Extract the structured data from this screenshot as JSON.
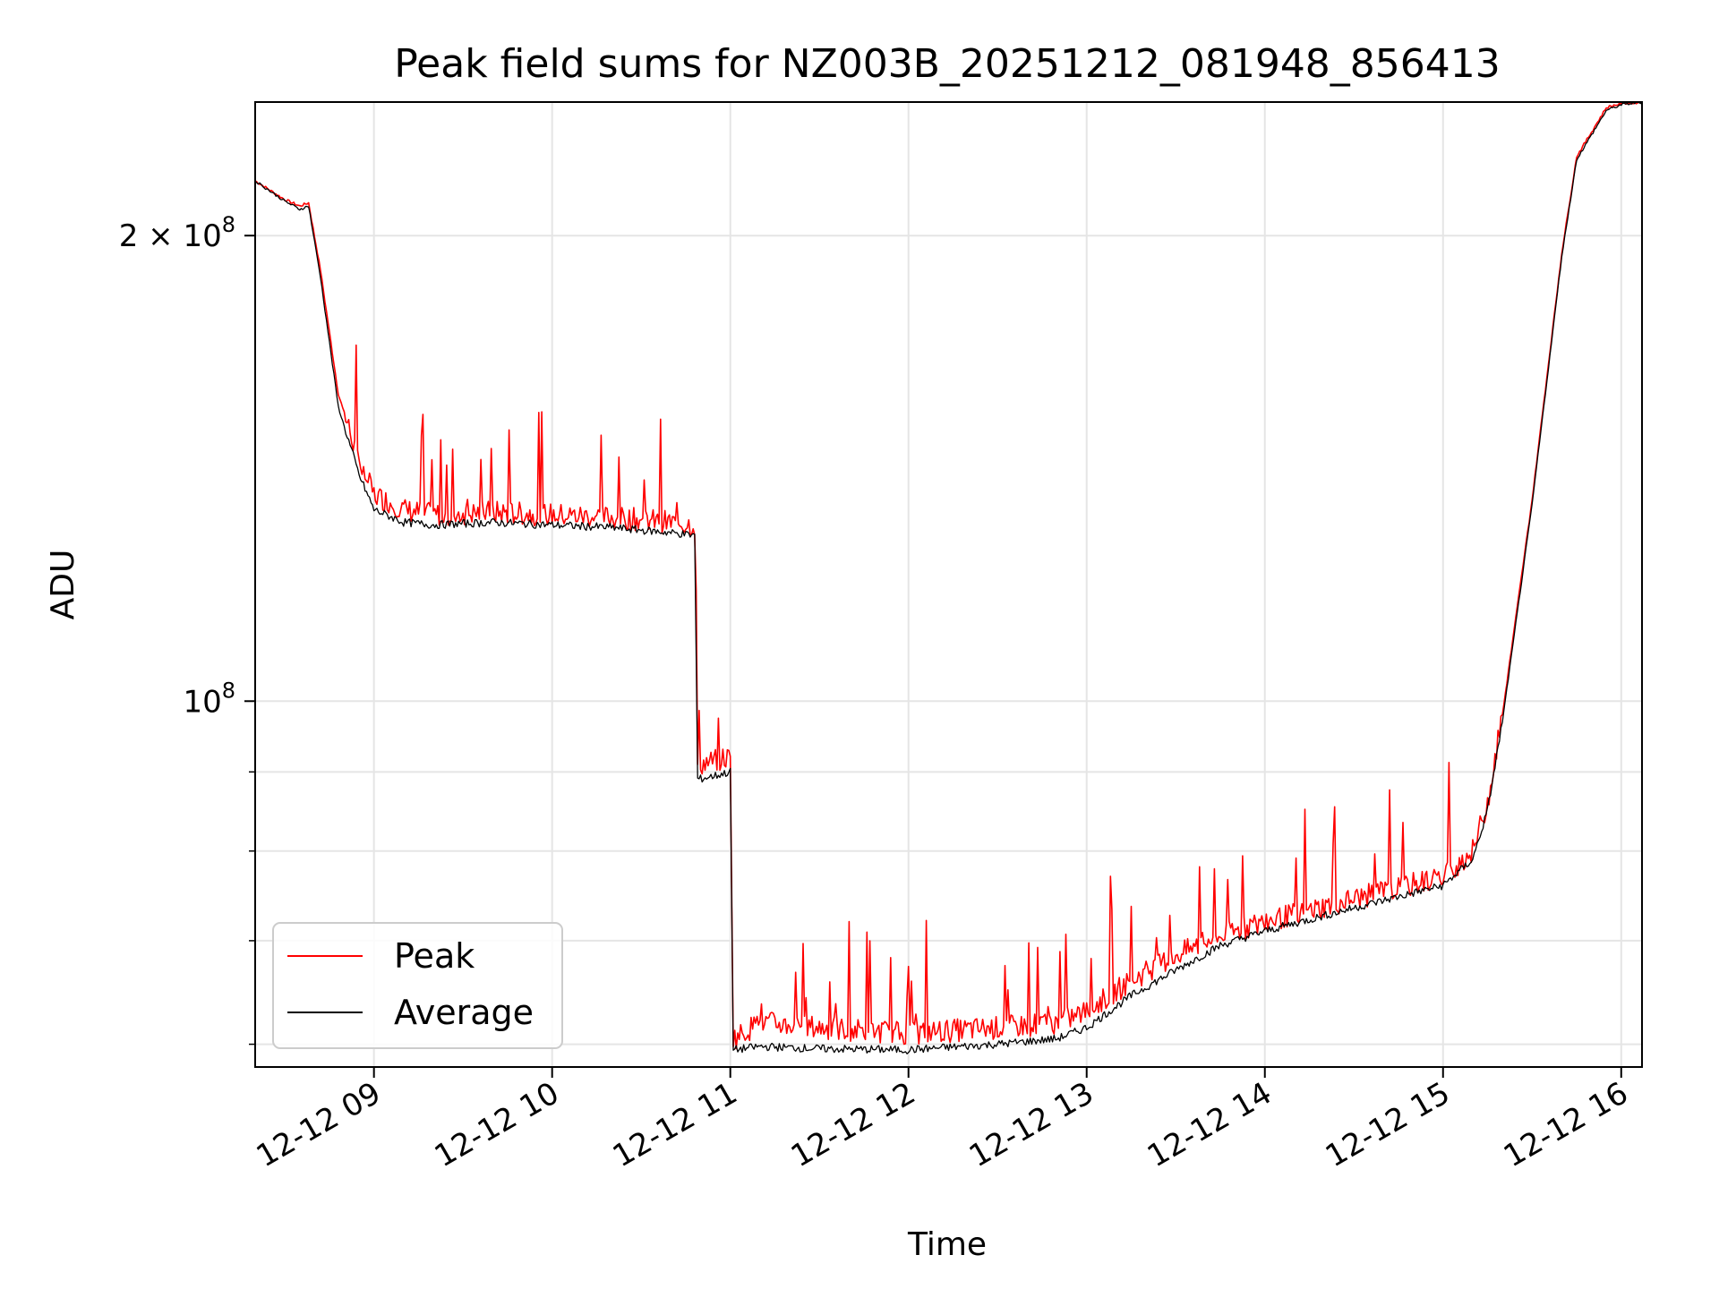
{
  "chart_data": {
    "type": "line",
    "title": "Peak field sums for NZ003B_20251212_081948_856413",
    "xlabel": "Time",
    "ylabel": "ADU",
    "yscale": "log",
    "xlim": [
      "2025-12-12 08:20",
      "2025-12-12 16:07"
    ],
    "ylim": [
      58000000,
      244000000
    ],
    "x_ticks": [
      "12-12 09",
      "12-12 10",
      "12-12 11",
      "12-12 12",
      "12-12 13",
      "12-12 14",
      "12-12 15",
      "12-12 16"
    ],
    "y_ticks_major": [
      "10^8",
      "2 × 10^8"
    ],
    "y_ticks_major_values": [
      100000000,
      200000000
    ],
    "y_ticks_minor_values": [
      60000000,
      70000000,
      80000000,
      90000000
    ],
    "grid": true,
    "legend_position": "lower-left",
    "series": [
      {
        "name": "Peak",
        "color": "#ff0000",
        "x": [
          "08:20",
          "08:30",
          "08:35",
          "08:38",
          "08:42",
          "08:48",
          "08:55",
          "09:00",
          "09:10",
          "09:20",
          "09:40",
          "10:00",
          "10:20",
          "10:40",
          "10:48",
          "10:49",
          "10:55",
          "11:00",
          "11:01",
          "11:10",
          "11:30",
          "12:00",
          "12:30",
          "12:50",
          "13:00",
          "13:15",
          "13:30",
          "13:45",
          "14:00",
          "14:30",
          "15:00",
          "15:10",
          "15:15",
          "15:20",
          "15:30",
          "15:40",
          "15:45",
          "15:55",
          "16:00",
          "16:07"
        ],
        "values": [
          217000000,
          211000000,
          209000000,
          210000000,
          190000000,
          158000000,
          143000000,
          136000000,
          133000000,
          132000000,
          132500000,
          132000000,
          131500000,
          130500000,
          130000000,
          91000000,
          91500000,
          92000000,
          60500000,
          62000000,
          61500000,
          61000000,
          61500000,
          62000000,
          63000000,
          66000000,
          68500000,
          70500000,
          72000000,
          74500000,
          77000000,
          80000000,
          86000000,
          98000000,
          135000000,
          195000000,
          225000000,
          242000000,
          243500000,
          244000000
        ]
      },
      {
        "name": "Average",
        "color": "#000000",
        "x": [
          "08:20",
          "08:30",
          "08:35",
          "08:38",
          "08:42",
          "08:48",
          "08:55",
          "09:00",
          "09:10",
          "09:20",
          "09:40",
          "10:00",
          "10:20",
          "10:40",
          "10:48",
          "10:49",
          "10:55",
          "11:00",
          "11:01",
          "11:10",
          "11:30",
          "12:00",
          "12:30",
          "12:50",
          "13:00",
          "13:15",
          "13:30",
          "13:45",
          "14:00",
          "14:30",
          "15:00",
          "15:10",
          "15:15",
          "15:20",
          "15:30",
          "15:40",
          "15:45",
          "15:55",
          "16:00",
          "16:07"
        ],
        "values": [
          217000000,
          210500000,
          208000000,
          209000000,
          188000000,
          155000000,
          140000000,
          133000000,
          130500000,
          130000000,
          130500000,
          130000000,
          129500000,
          128500000,
          128000000,
          89000000,
          89500000,
          90000000,
          59500000,
          59800000,
          59600000,
          59500000,
          60000000,
          60500000,
          61500000,
          64500000,
          67000000,
          69500000,
          71000000,
          73500000,
          76000000,
          79000000,
          85000000,
          97000000,
          134000000,
          194000000,
          224000000,
          241000000,
          243000000,
          244000000
        ]
      }
    ]
  }
}
